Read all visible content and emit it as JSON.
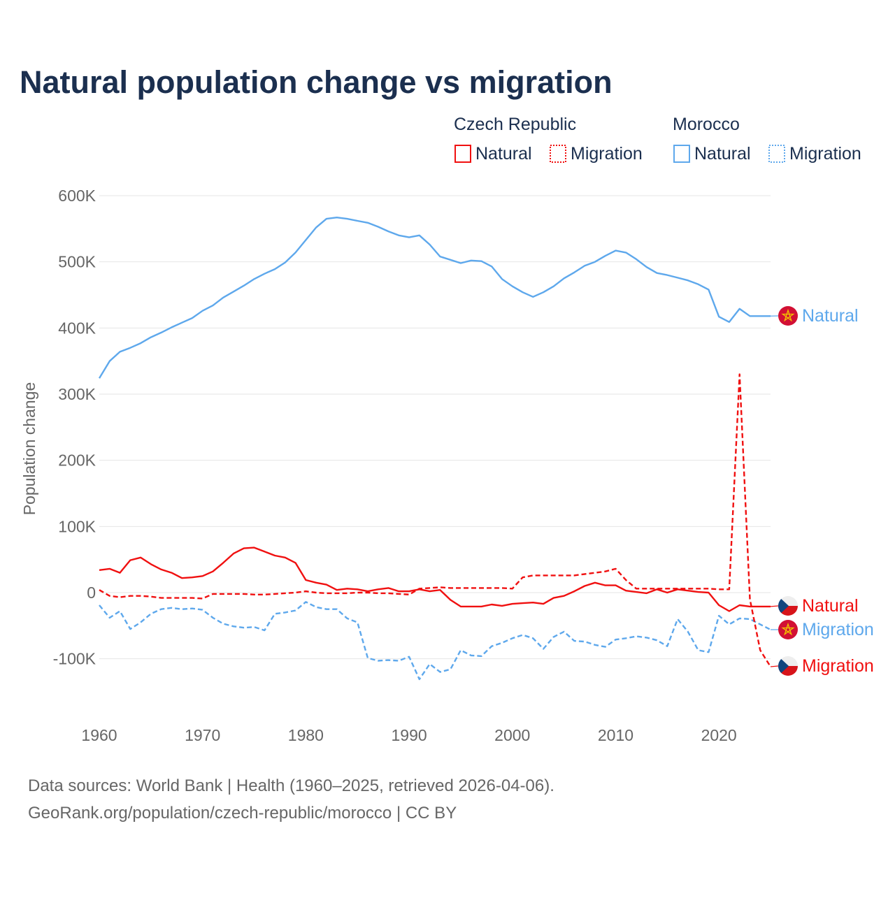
{
  "colors": {
    "czech": "#f01010",
    "morocco": "#5ea8ec",
    "title": "#1b2f4f"
  },
  "chart_data": {
    "type": "line",
    "title": "Natural population change vs migration",
    "ylabel": "Population change",
    "xlabel": "",
    "xlim": [
      1960,
      2025
    ],
    "ylim": [
      -150000,
      650000
    ],
    "grid": true,
    "y_ticks": [
      {
        "v": 600000,
        "label": "600K"
      },
      {
        "v": 500000,
        "label": "500K"
      },
      {
        "v": 400000,
        "label": "400K"
      },
      {
        "v": 300000,
        "label": "300K"
      },
      {
        "v": 200000,
        "label": "200K"
      },
      {
        "v": 100000,
        "label": "100K"
      },
      {
        "v": 0,
        "label": "0"
      },
      {
        "v": -100000,
        "label": "-100K"
      }
    ],
    "x_ticks": [
      {
        "v": 1960,
        "label": "1960"
      },
      {
        "v": 1970,
        "label": "1970"
      },
      {
        "v": 1980,
        "label": "1980"
      },
      {
        "v": 1990,
        "label": "1990"
      },
      {
        "v": 2000,
        "label": "2000"
      },
      {
        "v": 2010,
        "label": "2010"
      },
      {
        "v": 2020,
        "label": "2020"
      }
    ],
    "legend": {
      "groups": [
        {
          "name": "Czech Republic",
          "items": [
            "Natural",
            "Migration"
          ]
        },
        {
          "name": "Morocco",
          "items": [
            "Natural",
            "Migration"
          ]
        }
      ],
      "placement": "top-right"
    },
    "x_start": 1960,
    "series": [
      {
        "name": "Morocco Natural",
        "country": "morocco",
        "kind": "Natural",
        "end_label": "Natural",
        "values_k": [
          324,
          350,
          364,
          370,
          377,
          386,
          393,
          401,
          408,
          415,
          426,
          434,
          446,
          455,
          464,
          474,
          482,
          489,
          499,
          514,
          533,
          552,
          565,
          567,
          565,
          562,
          559,
          553,
          546,
          540,
          537,
          540,
          526,
          508,
          503,
          498,
          502,
          501,
          493,
          474,
          463,
          454,
          447,
          454,
          463,
          475,
          484,
          494,
          500,
          509,
          517,
          514,
          504,
          492,
          483,
          480,
          476,
          472,
          466,
          458,
          417,
          409,
          429,
          418,
          418,
          418
        ]
      },
      {
        "name": "Czech Republic Natural",
        "country": "czech",
        "kind": "Natural",
        "end_label": "Natural",
        "values_k": [
          34,
          36,
          30,
          49,
          53,
          43,
          35,
          30,
          22,
          23,
          25,
          32,
          45,
          59,
          67,
          68,
          62,
          56,
          53,
          45,
          19,
          15,
          12,
          4,
          6,
          5,
          2,
          5,
          7,
          2,
          2,
          5,
          2,
          4,
          -11,
          -21,
          -21,
          -21,
          -18,
          -20,
          -17,
          -16,
          -15,
          -17,
          -8,
          -5,
          2,
          10,
          15,
          11,
          11,
          3,
          1,
          -1,
          5,
          0,
          5,
          3,
          1,
          0,
          -19,
          -28,
          -19,
          -21,
          -21,
          -21
        ]
      },
      {
        "name": "Morocco Migration",
        "country": "morocco",
        "kind": "Migration",
        "end_label": "Migration",
        "values_k": [
          -19,
          -38,
          -28,
          -55,
          -45,
          -32,
          -25,
          -23,
          -25,
          -24,
          -26,
          -38,
          -47,
          -51,
          -53,
          -52,
          -57,
          -32,
          -30,
          -27,
          -14,
          -22,
          -25,
          -25,
          -39,
          -45,
          -99,
          -103,
          -102,
          -103,
          -97,
          -131,
          -108,
          -120,
          -116,
          -87,
          -95,
          -96,
          -81,
          -76,
          -69,
          -64,
          -69,
          -85,
          -67,
          -59,
          -73,
          -74,
          -79,
          -82,
          -71,
          -69,
          -66,
          -68,
          -72,
          -81,
          -40,
          -59,
          -87,
          -90,
          -35,
          -48,
          -39,
          -40,
          -48,
          -56
        ]
      },
      {
        "name": "Czech Republic Migration",
        "country": "czech",
        "kind": "Migration",
        "end_label": "Migration",
        "values_k": [
          4,
          -5,
          -7,
          -5,
          -5,
          -6,
          -8,
          -8,
          -8,
          -8,
          -9,
          -2,
          -2,
          -2,
          -2,
          -3,
          -3,
          -2,
          -1,
          0,
          2,
          0,
          -1,
          -1,
          -1,
          0,
          0,
          -1,
          -1,
          -2,
          -3,
          6,
          7,
          8,
          7,
          7,
          7,
          7,
          7,
          7,
          6,
          23,
          26,
          26,
          26,
          26,
          26,
          28,
          30,
          32,
          36,
          19,
          6,
          6,
          6,
          6,
          6,
          6,
          6,
          6,
          5,
          5,
          330,
          -10,
          -87,
          -112
        ]
      }
    ]
  },
  "footer": {
    "line1": "Data sources: World Bank | Health (1960–2025, retrieved 2026-04-06).",
    "line2": "GeoRank.org/population/czech-republic/morocco | CC BY"
  }
}
